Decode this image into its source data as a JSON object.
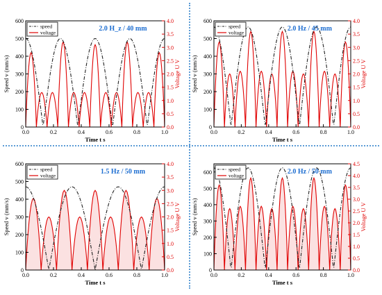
{
  "colors": {
    "speed": "#222222",
    "voltage": "#e00000",
    "voltage_fill": "#f7c9c9",
    "title": "#1f6fd1",
    "separator": "#5b9bd5"
  },
  "chart_data": [
    {
      "type": "line",
      "title": "2.0 H_z / 40 mm",
      "xlabel": "Time  t  s",
      "ylabel": "Speed  v  (mm/s)",
      "y2label": "Voltage  U  V",
      "legend": [
        "speed",
        "voltage"
      ],
      "legend_position": "top-left",
      "xlim": [
        0.0,
        1.0
      ],
      "ylim": [
        0,
        600
      ],
      "y2lim": [
        0.0,
        4.0
      ],
      "xticks": [
        "0.0",
        "0.2",
        "0.4",
        "0.6",
        "0.8",
        "1.0"
      ],
      "yticks": [
        "0",
        "100",
        "200",
        "300",
        "400",
        "500",
        "600"
      ],
      "y2ticks": [
        "0.0",
        "0.5",
        "1.0",
        "1.5",
        "2.0",
        "2.5",
        "3.0",
        "3.5",
        "4.0"
      ],
      "speed": {
        "frequency_hz": 2.0,
        "peak": 500
      },
      "voltage_peaks": [
        2.8,
        1.3,
        1.3,
        3.2,
        1.3,
        1.3,
        3.1,
        1.3,
        1.3,
        3.2,
        1.3,
        1.3,
        2.8
      ],
      "voltage_filled": false
    },
    {
      "type": "line",
      "title": "2.0 Hz / 45 mm",
      "xlabel": "Time  t  s",
      "ylabel": "Speed  v  (mm/s)",
      "y2label": "Voltage  U  V",
      "legend": [
        "speed",
        "voltage"
      ],
      "legend_position": "top-left",
      "xlim": [
        0.0,
        1.0
      ],
      "ylim": [
        0,
        600
      ],
      "y2lim": [
        0.0,
        4.0
      ],
      "xticks": [
        "0.0",
        "0.2",
        "0.4",
        "0.6",
        "0.8",
        "1.0"
      ],
      "yticks": [
        "0",
        "100",
        "200",
        "300",
        "400",
        "500",
        "600"
      ],
      "y2ticks": [
        "0.0",
        "0.5",
        "1.0",
        "1.5",
        "2.0",
        "2.5",
        "3.0",
        "3.5",
        "4.0"
      ],
      "speed": {
        "frequency_hz": 2.0,
        "peak": 565
      },
      "voltage_peaks": [
        3.2,
        2.0,
        2.1,
        3.6,
        2.1,
        2.0,
        3.6,
        2.1,
        2.0,
        3.6,
        2.1,
        2.0,
        3.2
      ],
      "voltage_filled": false
    },
    {
      "type": "line",
      "title": "1.5 Hz / 50 mm",
      "xlabel": "Time  t  s",
      "ylabel": "Speed  v  (mm/s)",
      "y2label": "Voltage  U  V",
      "legend": [
        "speed",
        "voltage"
      ],
      "legend_position": "top-left",
      "xlim": [
        0.0,
        1.0
      ],
      "ylim": [
        0,
        600
      ],
      "y2lim": [
        0.0,
        4.0
      ],
      "xticks": [
        "0.0",
        "0.2",
        "0.4",
        "0.6",
        "0.8",
        "1.0"
      ],
      "yticks": [
        "0",
        "100",
        "200",
        "300",
        "400",
        "500",
        "600"
      ],
      "y2ticks": [
        "0.0",
        "0.5",
        "1.0",
        "1.5",
        "2.0",
        "2.5",
        "3.0",
        "3.5",
        "4.0"
      ],
      "speed": {
        "frequency_hz": 1.5,
        "peak": 470
      },
      "voltage_peaks": [
        2.7,
        2.0,
        3.0,
        2.0,
        3.0,
        2.0,
        3.0,
        2.0,
        2.7
      ],
      "voltage_filled": true
    },
    {
      "type": "line",
      "title": "2.0 Hz / 50 mm",
      "xlabel": "Time  t  s",
      "ylabel": "Speed  v  (mm/s)",
      "y2label": "Voltage  U  V",
      "legend": [
        "speed",
        "voltage"
      ],
      "legend_position": "top-left",
      "xlim": [
        0.0,
        1.0
      ],
      "ylim": [
        0,
        650
      ],
      "y2lim": [
        0.0,
        4.5
      ],
      "xticks": [
        "0.0",
        "0.2",
        "0.4",
        "0.6",
        "0.8",
        "1.0"
      ],
      "yticks": [
        "0",
        "100",
        "200",
        "300",
        "400",
        "500",
        "600"
      ],
      "y2ticks": [
        "0.0",
        "0.5",
        "1.0",
        "1.5",
        "2.0",
        "2.5",
        "3.0",
        "3.5",
        "4.0",
        "4.5"
      ],
      "speed": {
        "frequency_hz": 2.0,
        "peak": 625
      },
      "voltage_peaks": [
        3.6,
        2.6,
        2.7,
        3.9,
        2.7,
        2.6,
        3.9,
        2.7,
        2.6,
        3.9,
        2.7,
        2.6,
        3.6
      ],
      "voltage_filled": true
    }
  ]
}
